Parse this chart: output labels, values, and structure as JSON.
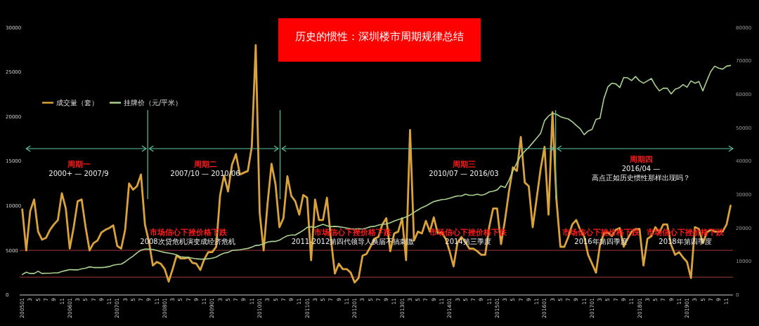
{
  "chart_data": {
    "type": "line",
    "title": "历史的惯性：深圳楼市周期规律总结",
    "categories": [
      "200501",
      null,
      "3",
      null,
      "5",
      null,
      "7",
      null,
      "9",
      null,
      "11",
      null,
      "200601",
      null,
      "3",
      null,
      "5",
      null,
      "7",
      null,
      "9",
      null,
      "11",
      null,
      "200701",
      null,
      "3",
      null,
      "5",
      null,
      "7",
      null,
      "9",
      null,
      "11",
      null,
      "200801",
      null,
      "3",
      null,
      "5",
      null,
      "7",
      null,
      "9",
      null,
      "11",
      null,
      "200901",
      null,
      "3",
      null,
      "5",
      null,
      "7",
      null,
      "9",
      null,
      "11",
      null,
      "201001",
      null,
      "3",
      null,
      "5",
      null,
      "7",
      null,
      "9",
      null,
      "11",
      null,
      "201101",
      null,
      "3",
      null,
      "5",
      null,
      "7",
      null,
      "9",
      null,
      "11",
      null,
      "201201",
      null,
      "3",
      null,
      "5",
      null,
      "7",
      null,
      "9",
      null,
      "11",
      null,
      "201301",
      null,
      "3",
      null,
      "5",
      null,
      "7",
      null,
      "9",
      null,
      "11",
      null,
      "201401",
      null,
      "3",
      null,
      "5",
      null,
      "7",
      null,
      "9",
      null,
      "11",
      null,
      "201501",
      null,
      "3",
      null,
      "5",
      null,
      "7",
      null,
      "9",
      null,
      "11",
      null,
      "201601",
      null,
      "3",
      null,
      "5",
      null,
      "7",
      null,
      "9",
      null,
      "11",
      null,
      "201701",
      null,
      "3",
      null,
      "5",
      null,
      "7",
      null,
      "9",
      null,
      "11",
      null,
      "201801",
      null,
      "3",
      null,
      "5",
      null,
      "7",
      null,
      "9",
      null,
      "11",
      null,
      "201901",
      null,
      "3",
      null,
      "5",
      null,
      "7",
      null,
      "9",
      null,
      "11",
      null
    ],
    "series": [
      {
        "name": "成交量（套）",
        "color": "#d9a23a",
        "values": [
          9600,
          5000,
          9400,
          10700,
          7100,
          6200,
          6400,
          7300,
          7900,
          8400,
          11400,
          9700,
          5200,
          7600,
          10500,
          10700,
          7600,
          5000,
          5800,
          6100,
          7000,
          7300,
          7500,
          7800,
          5500,
          5200,
          7300,
          12500,
          11800,
          12200,
          13500,
          7900,
          6000,
          3300,
          3700,
          3500,
          2900,
          1500,
          2900,
          4400,
          4100,
          4100,
          4200,
          3600,
          3500,
          2800,
          4000,
          4800,
          4800,
          5400,
          11200,
          13400,
          11600,
          14600,
          15800,
          13500,
          13700,
          13900,
          16600,
          28000,
          9200,
          5000,
          10300,
          14700,
          12400,
          7600,
          8600,
          13300,
          11100,
          10500,
          9000,
          11200,
          10900,
          3900,
          10700,
          8400,
          8400,
          10900,
          6300,
          2400,
          3500,
          2900,
          2900,
          2500,
          1400,
          1900,
          4400,
          4600,
          5400,
          6300,
          6500,
          7900,
          8600,
          4900,
          6900,
          7100,
          8600,
          3900,
          18500,
          6100,
          7100,
          6900,
          8300,
          7100,
          8700,
          6900,
          7000,
          6300,
          4900,
          3200,
          5900,
          6500,
          5900,
          5200,
          5200,
          4900,
          4500,
          4500,
          7600,
          9700,
          9700,
          5700,
          8400,
          11600,
          14300,
          13900,
          17700,
          12600,
          12200,
          7600,
          10800,
          14100,
          16600,
          9000,
          20500,
          10700,
          5400,
          5400,
          6500,
          7900,
          8400,
          7300,
          6600,
          4500,
          3500,
          2500,
          5600,
          6900,
          7000,
          6600,
          7300,
          7500,
          5400,
          6300,
          7100,
          7400,
          7400,
          3300,
          6300,
          6600,
          7600,
          7000,
          7900,
          7900,
          5600,
          4500,
          4800,
          4200,
          3700,
          1900,
          7600,
          7400,
          5800,
          7000,
          7300,
          7100,
          7100,
          7100,
          7900,
          10000
        ]
      },
      {
        "name": "挂牌价（元/平米）",
        "color": "#a9d18e",
        "axis": "y2",
        "values": [
          6100,
          6800,
          6400,
          6400,
          7100,
          6400,
          6500,
          6500,
          6600,
          6600,
          7000,
          7300,
          7600,
          7500,
          7500,
          7800,
          8000,
          8400,
          8200,
          8200,
          8200,
          8300,
          8500,
          8900,
          9100,
          9200,
          9900,
          10800,
          11600,
          12600,
          13400,
          13700,
          13700,
          13600,
          13300,
          13000,
          12700,
          12500,
          12300,
          12000,
          11400,
          11300,
          11200,
          11000,
          10800,
          10700,
          10700,
          10800,
          11000,
          11300,
          12000,
          12500,
          12700,
          13300,
          13400,
          13500,
          13700,
          13900,
          14300,
          14800,
          14900,
          15300,
          15800,
          16000,
          16000,
          16400,
          17100,
          17700,
          17900,
          17900,
          18600,
          19300,
          20200,
          20400,
          20200,
          20700,
          21100,
          20700,
          20400,
          20500,
          20400,
          20200,
          20000,
          19800,
          19700,
          19800,
          19700,
          20000,
          20400,
          20500,
          20900,
          21100,
          21200,
          21600,
          22100,
          22500,
          22900,
          23300,
          23900,
          24700,
          25400,
          26100,
          26600,
          27300,
          27900,
          28200,
          28500,
          28600,
          28900,
          29300,
          29600,
          29600,
          30100,
          29800,
          29800,
          30100,
          29800,
          30100,
          30800,
          31000,
          31400,
          32600,
          32100,
          34300,
          37100,
          39500,
          41600,
          43000,
          44100,
          45500,
          46900,
          48300,
          52100,
          53500,
          54300,
          54000,
          53300,
          52900,
          52600,
          51800,
          50700,
          49700,
          47900,
          49000,
          49500,
          52500,
          52800,
          58700,
          62200,
          63300,
          63100,
          62000,
          65000,
          64900,
          64100,
          65300,
          64000,
          63300,
          64000,
          64700,
          62600,
          61000,
          61800,
          61800,
          60100,
          61500,
          61900,
          62900,
          62100,
          64000,
          63300,
          63800,
          61000,
          64000,
          66800,
          68400,
          67800,
          67500,
          68400,
          68600
        ]
      }
    ],
    "ylim": [
      0,
      30000
    ],
    "yticks": [
      0,
      5000,
      10000,
      15000,
      20000,
      25000,
      30000
    ],
    "y2lim": [
      0,
      80000
    ],
    "y2ticks": [
      0,
      10000,
      20000,
      30000,
      40000,
      50000,
      60000,
      70000,
      80000
    ],
    "ref_lines": [
      {
        "axis": "y",
        "value": 5000,
        "color": "#a33a3a"
      },
      {
        "axis": "y",
        "value": 2000,
        "color": "#a33a3a"
      }
    ],
    "legend": "top left",
    "annotations": [
      "周期一",
      "2000+  — 2007/9",
      "周期二",
      "2007/10 — 2010/06",
      "周期三",
      "2010/07 — 2016/03",
      "周期四",
      "2016/04 —",
      "高点正如历史惯性那样出现吗？",
      "市场信心下挫价格下跌",
      "2008次贷危机演变成经济危机",
      "市场信心下挫价格下跌",
      "2011-2012第四代领导人换届不搞刺激",
      "市场信心下挫价格下跌",
      "2014第三季度",
      "市场信心下挫价格下跌",
      "2016年第四季度",
      "市场信心下挫价格下跌",
      "2018年第四季度"
    ]
  }
}
